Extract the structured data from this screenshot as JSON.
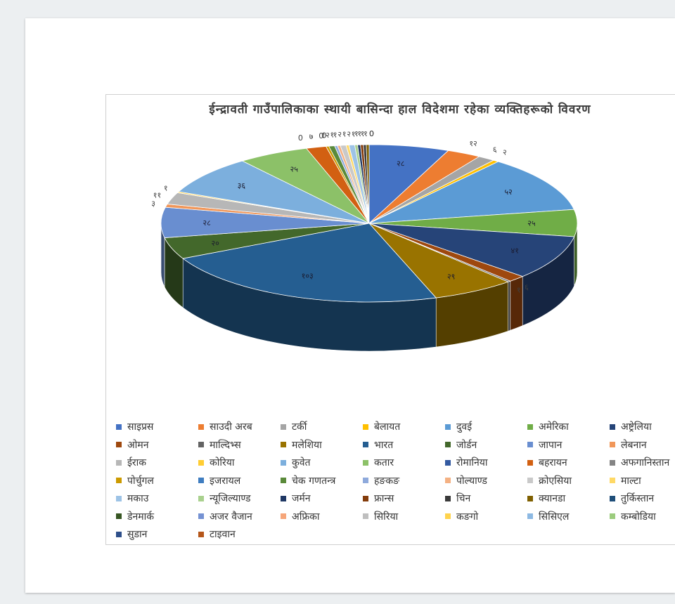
{
  "chart_data": {
    "type": "pie",
    "title": "ईन्द्रावती गाउँपालिकाका स्थायी बासिन्दा हाल विदेशमा रहेका व्यक्तिहरूको विवरण",
    "slices": [
      {
        "label": "साइप्रस",
        "value": 28,
        "value_label": "२८",
        "color": "#4472c4"
      },
      {
        "label": "साउदी अरब",
        "value": 12,
        "value_label": "१२",
        "color": "#ed7d31"
      },
      {
        "label": "टर्की",
        "value": 6,
        "value_label": "६",
        "color": "#a5a5a5"
      },
      {
        "label": "बेलायत",
        "value": 2,
        "value_label": "२",
        "color": "#ffc000"
      },
      {
        "label": "दुवई",
        "value": 52,
        "value_label": "५२",
        "color": "#5b9bd5"
      },
      {
        "label": "अमेरिका",
        "value": 25,
        "value_label": "२५",
        "color": "#70ad47"
      },
      {
        "label": "अष्ट्रेलिया",
        "value": 41,
        "value_label": "४१",
        "color": "#264478"
      },
      {
        "label": "ओमन",
        "value": 6,
        "value_label": "६",
        "color": "#9e480e"
      },
      {
        "label": "माल्दिभ्स",
        "value": 1,
        "value_label": "१",
        "color": "#636363"
      },
      {
        "label": "मलेशिया",
        "value": 29,
        "value_label": "२९",
        "color": "#997300"
      },
      {
        "label": "भारत",
        "value": 103,
        "value_label": "१०३",
        "color": "#255e91"
      },
      {
        "label": "जोर्डन",
        "value": 20,
        "value_label": "२०",
        "color": "#43682b"
      },
      {
        "label": "जापान",
        "value": 28,
        "value_label": "२८",
        "color": "#698ed0"
      },
      {
        "label": "लेबनान",
        "value": 3,
        "value_label": "३",
        "color": "#f1975a"
      },
      {
        "label": "ईराक",
        "value": 11,
        "value_label": "११",
        "color": "#b7b7b7"
      },
      {
        "label": "कोरिया",
        "value": 1,
        "value_label": "१",
        "color": "#ffcd33"
      },
      {
        "label": "कुवेत",
        "value": 36,
        "value_label": "३६",
        "color": "#7cafdd"
      },
      {
        "label": "कतार",
        "value": 25,
        "value_label": "२५",
        "color": "#8cc168"
      },
      {
        "label": "रोमानिया",
        "value": 0,
        "value_label": "0",
        "color": "#335aa1"
      },
      {
        "label": "बहरायन",
        "value": 7,
        "value_label": "७",
        "color": "#d26012"
      },
      {
        "label": "अफगानिस्तान",
        "value": 0,
        "value_label": "0",
        "color": "#848484"
      },
      {
        "label": "पोर्चुगल",
        "value": 1,
        "value_label": "१",
        "color": "#cc9a00"
      },
      {
        "label": "इजरायल",
        "value": 0,
        "value_label": "0",
        "color": "#3f7dc0"
      },
      {
        "label": "चेक गणतन्त्र",
        "value": 2,
        "value_label": "२",
        "color": "#5a8a3a"
      },
      {
        "label": "हङकङ",
        "value": 1,
        "value_label": "१",
        "color": "#8faadc"
      },
      {
        "label": "पोल्याण्ड",
        "value": 1,
        "value_label": "१",
        "color": "#f4b183"
      },
      {
        "label": "क्रोएसिया",
        "value": 2,
        "value_label": "२",
        "color": "#c9c9c9"
      },
      {
        "label": "माल्टा",
        "value": 1,
        "value_label": "१",
        "color": "#ffd966"
      },
      {
        "label": "मकाउ",
        "value": 2,
        "value_label": "२",
        "color": "#9dc3e6"
      },
      {
        "label": "न्यूजिल्याण्ड",
        "value": 1,
        "value_label": "१",
        "color": "#a9d18e"
      },
      {
        "label": "जर्मन",
        "value": 1,
        "value_label": "१",
        "color": "#1f3864"
      },
      {
        "label": "फ्रान्स",
        "value": 1,
        "value_label": "१",
        "color": "#843c0c"
      },
      {
        "label": "चिन",
        "value": 1,
        "value_label": "१",
        "color": "#3a3a3a"
      },
      {
        "label": "क्यानडा",
        "value": 1,
        "value_label": "१",
        "color": "#7f6000"
      },
      {
        "label": "तुर्किस्तान",
        "value": 0,
        "value_label": "0",
        "color": "#1f4e79"
      },
      {
        "label": "डेनमार्क",
        "value": 0,
        "value_label": "0",
        "color": "#375623"
      },
      {
        "label": "अजर वैजान",
        "value": 0,
        "value_label": "",
        "color": "#7592d3"
      },
      {
        "label": "अफ्रिका",
        "value": 0,
        "value_label": "",
        "color": "#f6a67a"
      },
      {
        "label": "सिरिया",
        "value": 0,
        "value_label": "",
        "color": "#bfbfbf"
      },
      {
        "label": "कङगो",
        "value": 0,
        "value_label": "",
        "color": "#ffd34d"
      },
      {
        "label": "सिसिएल",
        "value": 0,
        "value_label": "",
        "color": "#8db9e3"
      },
      {
        "label": "कम्बोडिया",
        "value": 0,
        "value_label": "",
        "color": "#9ccc7e"
      },
      {
        "label": "सुडान",
        "value": 0,
        "value_label": "",
        "color": "#2e4f8a"
      },
      {
        "label": "टाइवान",
        "value": 0,
        "value_label": "",
        "color": "#b5561a"
      }
    ],
    "legend_position": "bottom",
    "legend_columns": 7
  }
}
